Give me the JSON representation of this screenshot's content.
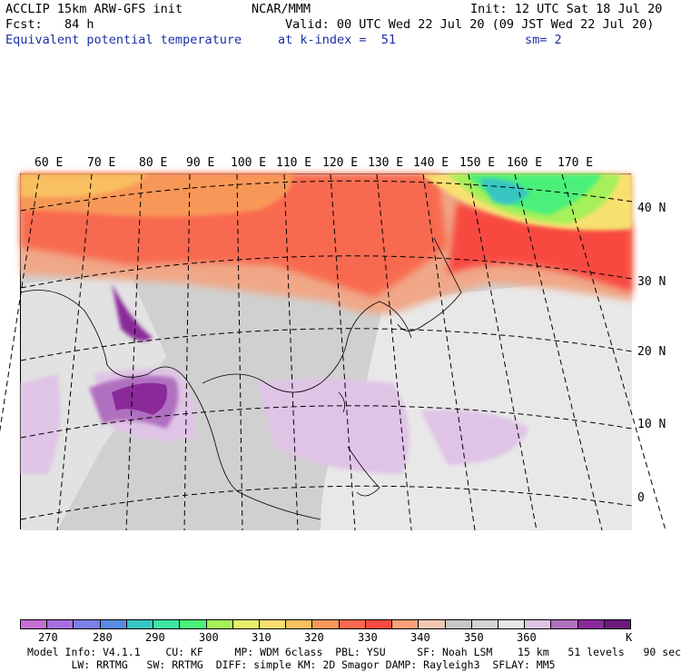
{
  "header": {
    "line1_left": "ACCLIP 15km ARW-GFS init",
    "line1_mid": "NCAR/MMM",
    "line1_right": "Init: 12 UTC Sat 18 Jul 20",
    "line2_left": "Fcst:   84 h",
    "line2_right": "Valid: 00 UTC Wed 22 Jul 20 (09 JST Wed 22 Jul 20)",
    "line3_left": "Equivalent potential temperature",
    "line3_mid": "at k-index =  51",
    "line3_right": "sm= 2"
  },
  "map": {
    "lon_labels": [
      "60 E",
      "70 E",
      "80 E",
      "90 E",
      "100 E",
      "110 E",
      "120 E",
      "130 E",
      "140 E",
      "150 E",
      "160 E",
      "170 E"
    ],
    "lat_labels": [
      "40 N",
      "30 N",
      "20 N",
      "10 N",
      "0"
    ]
  },
  "colorbar": {
    "colors": [
      "#c46fd3",
      "#a86ee0",
      "#7e7fe8",
      "#5a8be0",
      "#38c6c2",
      "#3ee6a0",
      "#4cf07a",
      "#a6f05a",
      "#e6f06a",
      "#f8e070",
      "#f8c060",
      "#f89858",
      "#f86a50",
      "#f84a40",
      "#f8a078",
      "#f0c8b0",
      "#c8c8c8",
      "#d4d4d4",
      "#e6e6e6",
      "#e0c4e6",
      "#b070c0",
      "#8a2a9a",
      "#6a1a7a"
    ],
    "ticks": [
      "270",
      "280",
      "290",
      "300",
      "310",
      "320",
      "330",
      "340",
      "350",
      "360",
      "K"
    ]
  },
  "footer": {
    "line1": "Model Info: V4.1.1    CU: KF     MP: WDM 6class  PBL: YSU     SF: Noah LSM    15 km   51 levels   90 sec",
    "line2": "       LW: RRTMG   SW: RRTMG  DIFF: simple KM: 2D Smagor DAMP: Rayleigh3  SFLAY: MM5"
  }
}
